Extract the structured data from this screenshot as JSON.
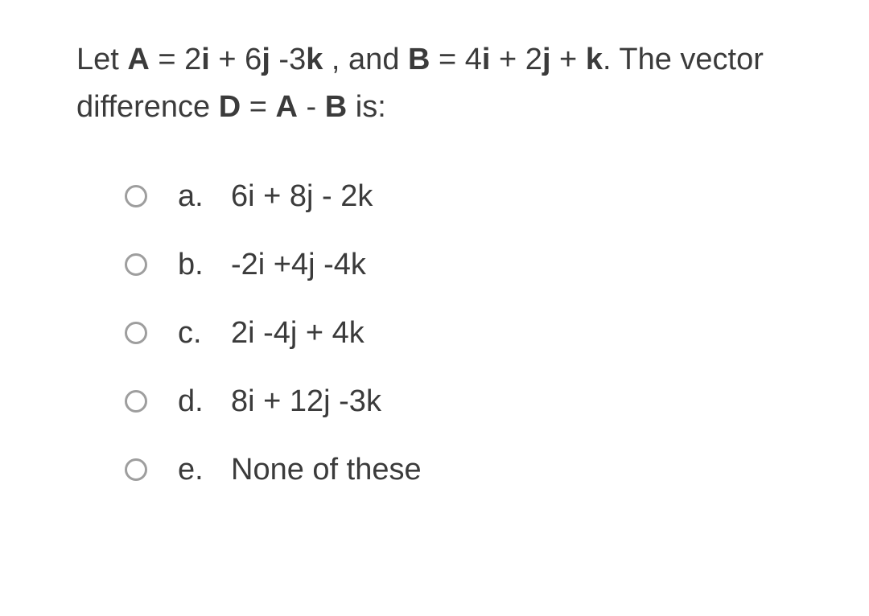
{
  "question": {
    "parts": [
      {
        "text": "Let ",
        "bold": false
      },
      {
        "text": "A",
        "bold": true
      },
      {
        "text": " = 2",
        "bold": false
      },
      {
        "text": "i",
        "bold": true
      },
      {
        "text": " + 6",
        "bold": false
      },
      {
        "text": "j",
        "bold": true
      },
      {
        "text": " -3",
        "bold": false
      },
      {
        "text": "k",
        "bold": true
      },
      {
        "text": " , and ",
        "bold": false
      },
      {
        "text": "B",
        "bold": true
      },
      {
        "text": " = 4",
        "bold": false
      },
      {
        "text": "i",
        "bold": true
      },
      {
        "text": " + 2",
        "bold": false
      },
      {
        "text": "j",
        "bold": true
      },
      {
        "text": " + ",
        "bold": false
      },
      {
        "text": "k",
        "bold": true
      },
      {
        "text": ". The vector difference ",
        "bold": false
      },
      {
        "text": "D",
        "bold": true
      },
      {
        "text": " = ",
        "bold": false
      },
      {
        "text": "A",
        "bold": true
      },
      {
        "text": " - ",
        "bold": false
      },
      {
        "text": "B",
        "bold": true
      },
      {
        "text": " is:",
        "bold": false
      }
    ]
  },
  "options": [
    {
      "letter": "a.",
      "text": "6i + 8j - 2k"
    },
    {
      "letter": "b.",
      "text": "-2i +4j -4k"
    },
    {
      "letter": "c.",
      "text": "2i -4j + 4k"
    },
    {
      "letter": "d.",
      "text": "8i + 12j -3k"
    },
    {
      "letter": "e.",
      "text": "None of these"
    }
  ],
  "styling": {
    "background_color": "#ffffff",
    "text_color": "#3b3b3b",
    "radio_border_color": "#9e9e9e",
    "question_fontsize": 38,
    "option_fontsize": 38,
    "radio_size": 28
  }
}
